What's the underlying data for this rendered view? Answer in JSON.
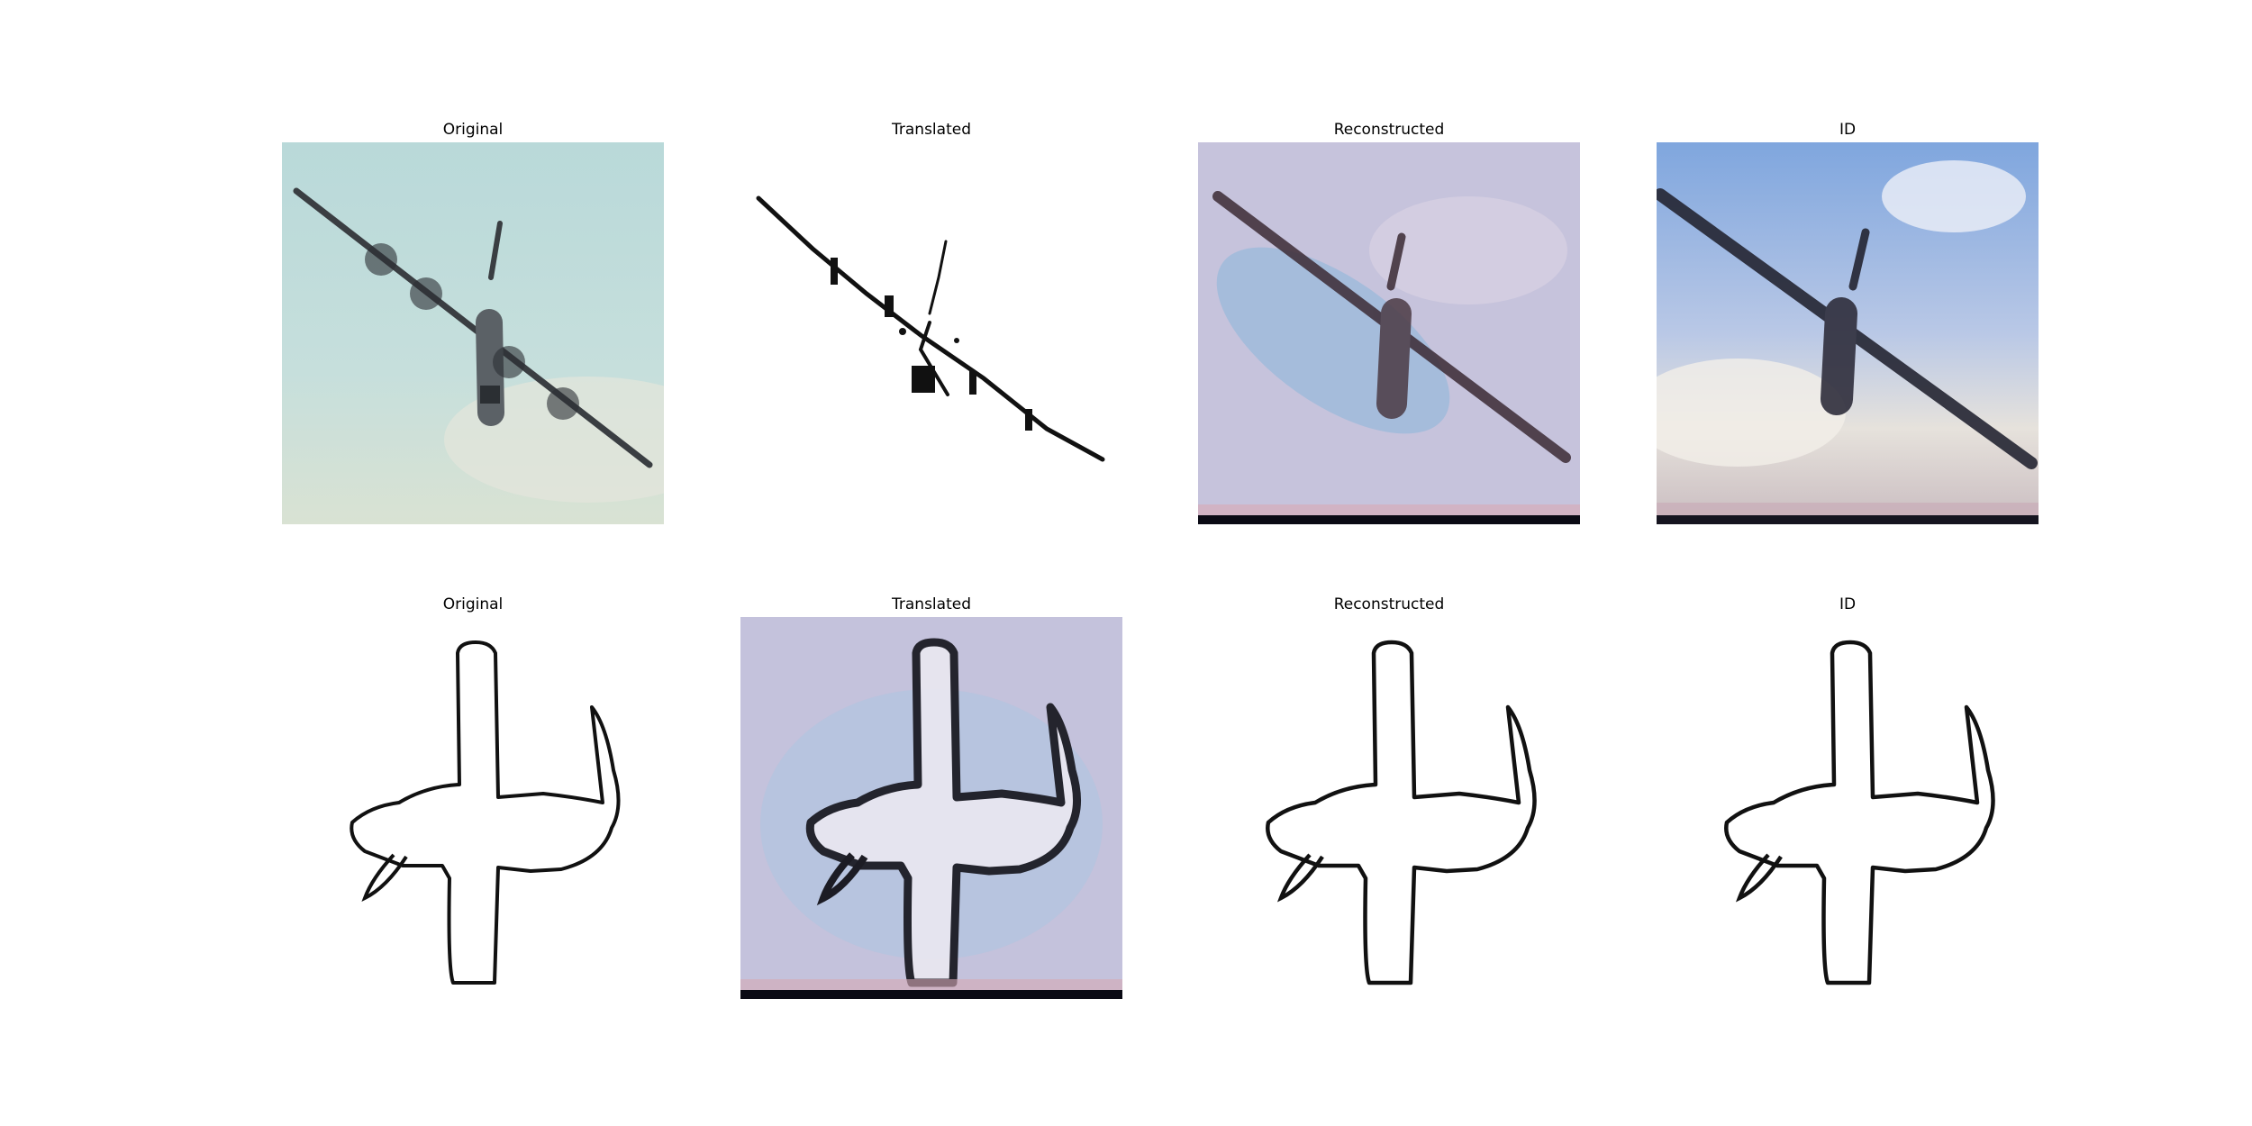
{
  "figure": {
    "panels": [
      {
        "title": "Original",
        "content": "photo-airplane"
      },
      {
        "title": "Translated",
        "content": "sketch-airplane"
      },
      {
        "title": "Reconstructed",
        "content": "blurry-photo-airplane"
      },
      {
        "title": "ID",
        "content": "blurry-photo-airplane-sky"
      },
      {
        "title": "Original",
        "content": "sketch-cross-plane"
      },
      {
        "title": "Translated",
        "content": "photo-cross-plane"
      },
      {
        "title": "Reconstructed",
        "content": "sketch-cross-plane"
      },
      {
        "title": "ID",
        "content": "sketch-cross-plane"
      }
    ]
  }
}
